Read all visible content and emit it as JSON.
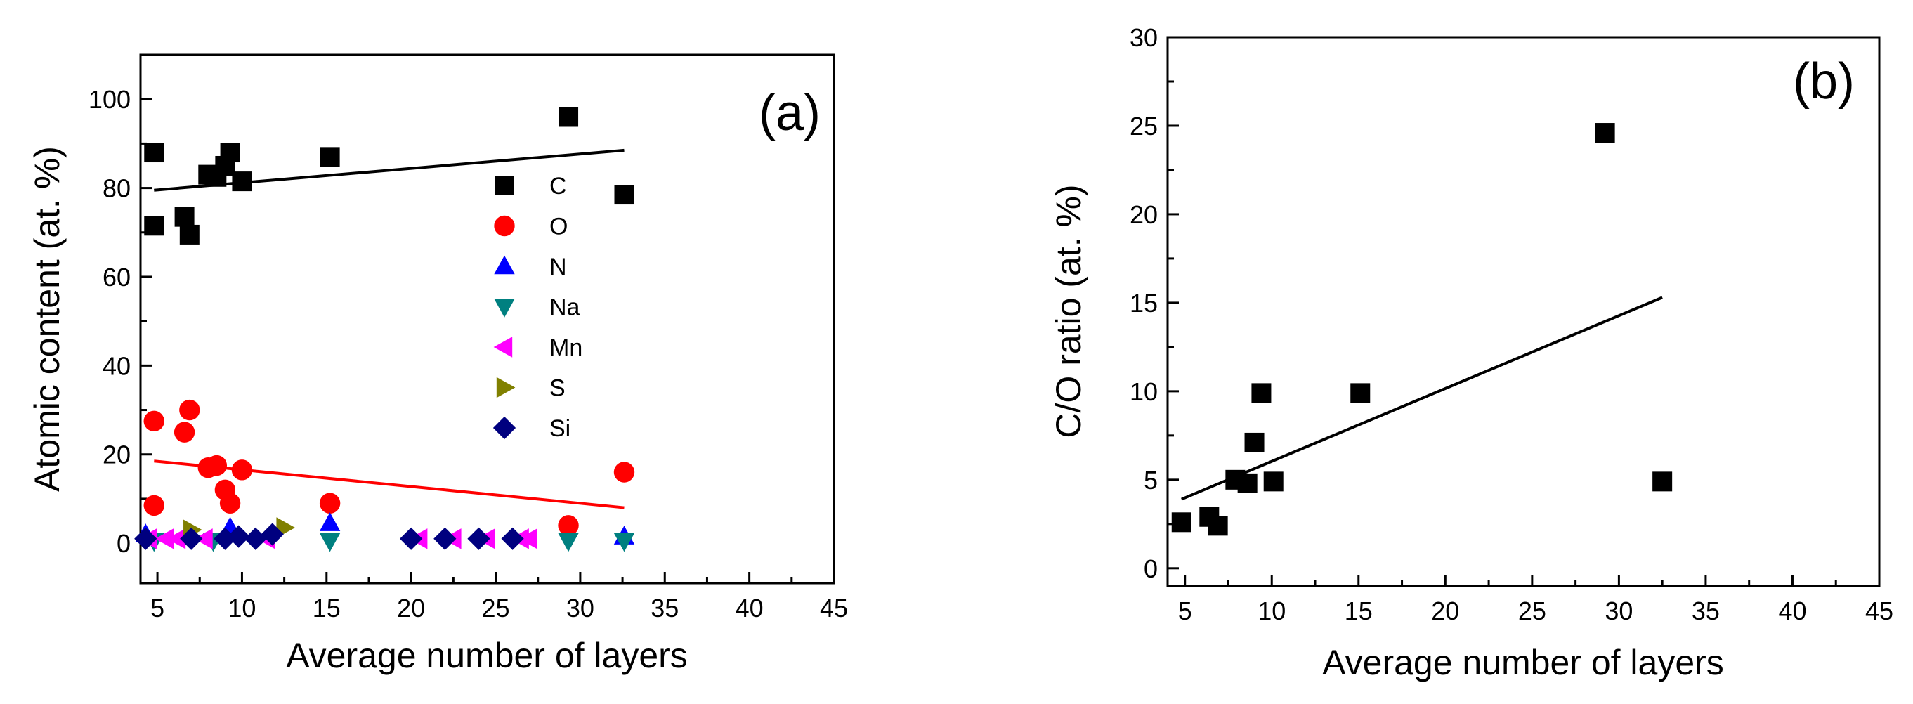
{
  "chart_data": [
    {
      "type": "scatter",
      "panel": "(a)",
      "xlabel": "Average number of layers",
      "ylabel": "Atomic content (at. %)",
      "xlim": [
        4,
        45
      ],
      "ylim": [
        -9,
        110
      ],
      "xticks": [
        5,
        10,
        15,
        20,
        25,
        30,
        35,
        40,
        45
      ],
      "yticks": [
        0,
        20,
        40,
        60,
        80,
        100
      ],
      "legend_position": "right-center",
      "series": [
        {
          "name": "C",
          "marker": "square",
          "color": "#000000",
          "x": [
            4.8,
            4.8,
            6.6,
            6.9,
            8.0,
            8.5,
            9.0,
            9.3,
            10.0,
            15.2,
            29.3,
            32.6
          ],
          "y": [
            88,
            71.5,
            73.5,
            69.5,
            83,
            82.5,
            85,
            88,
            81.5,
            87,
            96,
            78.5
          ]
        },
        {
          "name": "O",
          "marker": "circle",
          "color": "#ff0000",
          "x": [
            4.8,
            4.8,
            6.6,
            6.9,
            8.0,
            8.5,
            9.0,
            9.3,
            10.0,
            15.2,
            29.3,
            32.6
          ],
          "y": [
            27.5,
            8.5,
            25,
            30,
            17,
            17.5,
            12,
            9,
            16.5,
            9,
            4,
            16
          ]
        },
        {
          "name": "N",
          "marker": "triangle-up",
          "color": "#0000ff",
          "x": [
            4.3,
            9.3,
            15.2,
            32.6
          ],
          "y": [
            2,
            3.5,
            4.5,
            1.5
          ]
        },
        {
          "name": "Na",
          "marker": "triangle-down",
          "color": "#008080",
          "x": [
            4.8,
            8.3,
            15.2,
            29.3,
            32.6
          ],
          "y": [
            0.5,
            0.5,
            0.5,
            0.5,
            0.5
          ]
        },
        {
          "name": "Mn",
          "marker": "triangle-left",
          "color": "#ff00ff",
          "x": [
            4.5,
            5.5,
            6.2,
            7.8,
            11.5,
            20.5,
            22.5,
            24.5,
            26.5,
            27.0
          ],
          "y": [
            1,
            1,
            1,
            1,
            1,
            1,
            1,
            1,
            1,
            1
          ]
        },
        {
          "name": "S",
          "marker": "triangle-right",
          "color": "#808000",
          "x": [
            7.0,
            12.5
          ],
          "y": [
            3,
            3.5
          ]
        },
        {
          "name": "Si",
          "marker": "diamond",
          "color": "#00007f",
          "x": [
            4.3,
            7.0,
            9.0,
            9.8,
            10.8,
            11.8,
            20.0,
            22.0,
            24.0,
            26.0
          ],
          "y": [
            1,
            1,
            1,
            1.5,
            1,
            2,
            1,
            1,
            1,
            1
          ]
        }
      ],
      "fits": [
        {
          "name": "C fit",
          "color": "#000000",
          "x": [
            4.8,
            32.6
          ],
          "y": [
            79.5,
            88.5
          ]
        },
        {
          "name": "O fit",
          "color": "#ff0000",
          "x": [
            4.8,
            32.6
          ],
          "y": [
            18.5,
            8
          ]
        }
      ]
    },
    {
      "type": "scatter",
      "panel": "(b)",
      "xlabel": "Average number of layers",
      "ylabel": "C/O ratio (at. %)",
      "xlim": [
        4,
        45
      ],
      "ylim": [
        -1,
        30
      ],
      "xticks": [
        5,
        10,
        15,
        20,
        25,
        30,
        35,
        40,
        45
      ],
      "yticks": [
        0,
        5,
        10,
        15,
        20,
        25,
        30
      ],
      "series": [
        {
          "name": "C/O",
          "marker": "square",
          "color": "#000000",
          "x": [
            4.8,
            6.4,
            6.9,
            7.9,
            8.6,
            9.0,
            9.4,
            10.1,
            15.1,
            29.2,
            32.5
          ],
          "y": [
            2.6,
            2.9,
            2.4,
            5.0,
            4.8,
            7.1,
            9.9,
            4.9,
            9.9,
            24.6,
            4.9
          ]
        }
      ],
      "fits": [
        {
          "name": "C/O fit",
          "color": "#000000",
          "x": [
            4.8,
            32.5
          ],
          "y": [
            3.9,
            15.3
          ]
        }
      ]
    }
  ]
}
